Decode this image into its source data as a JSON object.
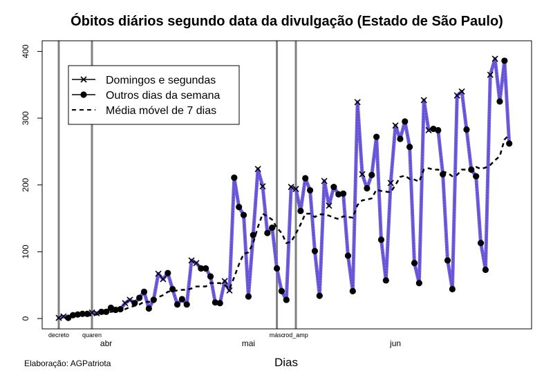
{
  "chart_data": {
    "type": "line",
    "title": "Óbitos diários segundo data da divulgação (Estado de São Paulo)",
    "xlabel": "Dias",
    "ylabel": "",
    "credit": "Elaboração: AGPatriota",
    "x_start": "2020-03-22",
    "ylim": [
      0,
      410
    ],
    "yticks": [
      0,
      100,
      200,
      300,
      400
    ],
    "month_labels": [
      {
        "date": "2020-04-01",
        "label": "abr"
      },
      {
        "date": "2020-05-01",
        "label": "mai"
      },
      {
        "date": "2020-06-01",
        "label": "jun"
      }
    ],
    "events": [
      {
        "date": "2020-03-22",
        "label": "decreto"
      },
      {
        "date": "2020-03-29",
        "label": "quaren"
      },
      {
        "date": "2020-05-07",
        "label": "másc"
      },
      {
        "date": "2020-05-11",
        "label": "rod_amp"
      }
    ],
    "legend": {
      "position": "top-left",
      "entries": [
        "Domingos e segundas",
        "Outros dias da semana",
        "Média móvel de 7 dias"
      ]
    },
    "colors": {
      "line": "#6f5fe0",
      "points": "#000000",
      "event_lines": "#808080",
      "moving_average": "#000000"
    },
    "series": [
      {
        "name": "Óbitos diários",
        "values": [
          1,
          3,
          1,
          5,
          6,
          7,
          7,
          9,
          8,
          10,
          10,
          16,
          13,
          14,
          23,
          28,
          23,
          31,
          40,
          15,
          28,
          67,
          59,
          68,
          44,
          21,
          29,
          21,
          87,
          83,
          75,
          75,
          63,
          24,
          23,
          56,
          42,
          211,
          167,
          155,
          33,
          125,
          224,
          198,
          128,
          136,
          75,
          41,
          28,
          197,
          194,
          161,
          210,
          192,
          101,
          34,
          206,
          169,
          197,
          186,
          187,
          94,
          41,
          324,
          216,
          195,
          215,
          272,
          118,
          57,
          203,
          289,
          269,
          295,
          257,
          83,
          53,
          327,
          282,
          284,
          282,
          216,
          87,
          44,
          334,
          340,
          283,
          223,
          213,
          113,
          73,
          365,
          389,
          325,
          386,
          262
        ]
      },
      {
        "name": "Média móvel de 7 dias",
        "values": [
          null,
          null,
          null,
          null,
          null,
          null,
          4,
          5,
          6,
          7,
          8,
          10,
          11,
          13,
          14,
          17,
          19,
          21,
          25,
          25,
          26,
          32,
          35,
          40,
          41,
          42,
          43,
          43,
          45,
          48,
          48,
          48,
          53,
          53,
          53,
          50,
          44,
          62,
          81,
          97,
          99,
          113,
          137,
          157,
          153,
          148,
          136,
          128,
          113,
          115,
          127,
          141,
          157,
          157,
          152,
          156,
          156,
          154,
          151,
          149,
          153,
          152,
          151,
          170,
          177,
          178,
          180,
          193,
          191,
          190,
          189,
          200,
          212,
          214,
          209,
          208,
          205,
          223,
          225,
          223,
          223,
          220,
          218,
          213,
          215,
          223,
          223,
          223,
          227,
          224,
          226,
          230,
          237,
          243,
          268,
          275
        ],
        "style": "dashed"
      }
    ],
    "marker_rule": "x marker on Sundays and Mondays, filled circle on other days"
  }
}
